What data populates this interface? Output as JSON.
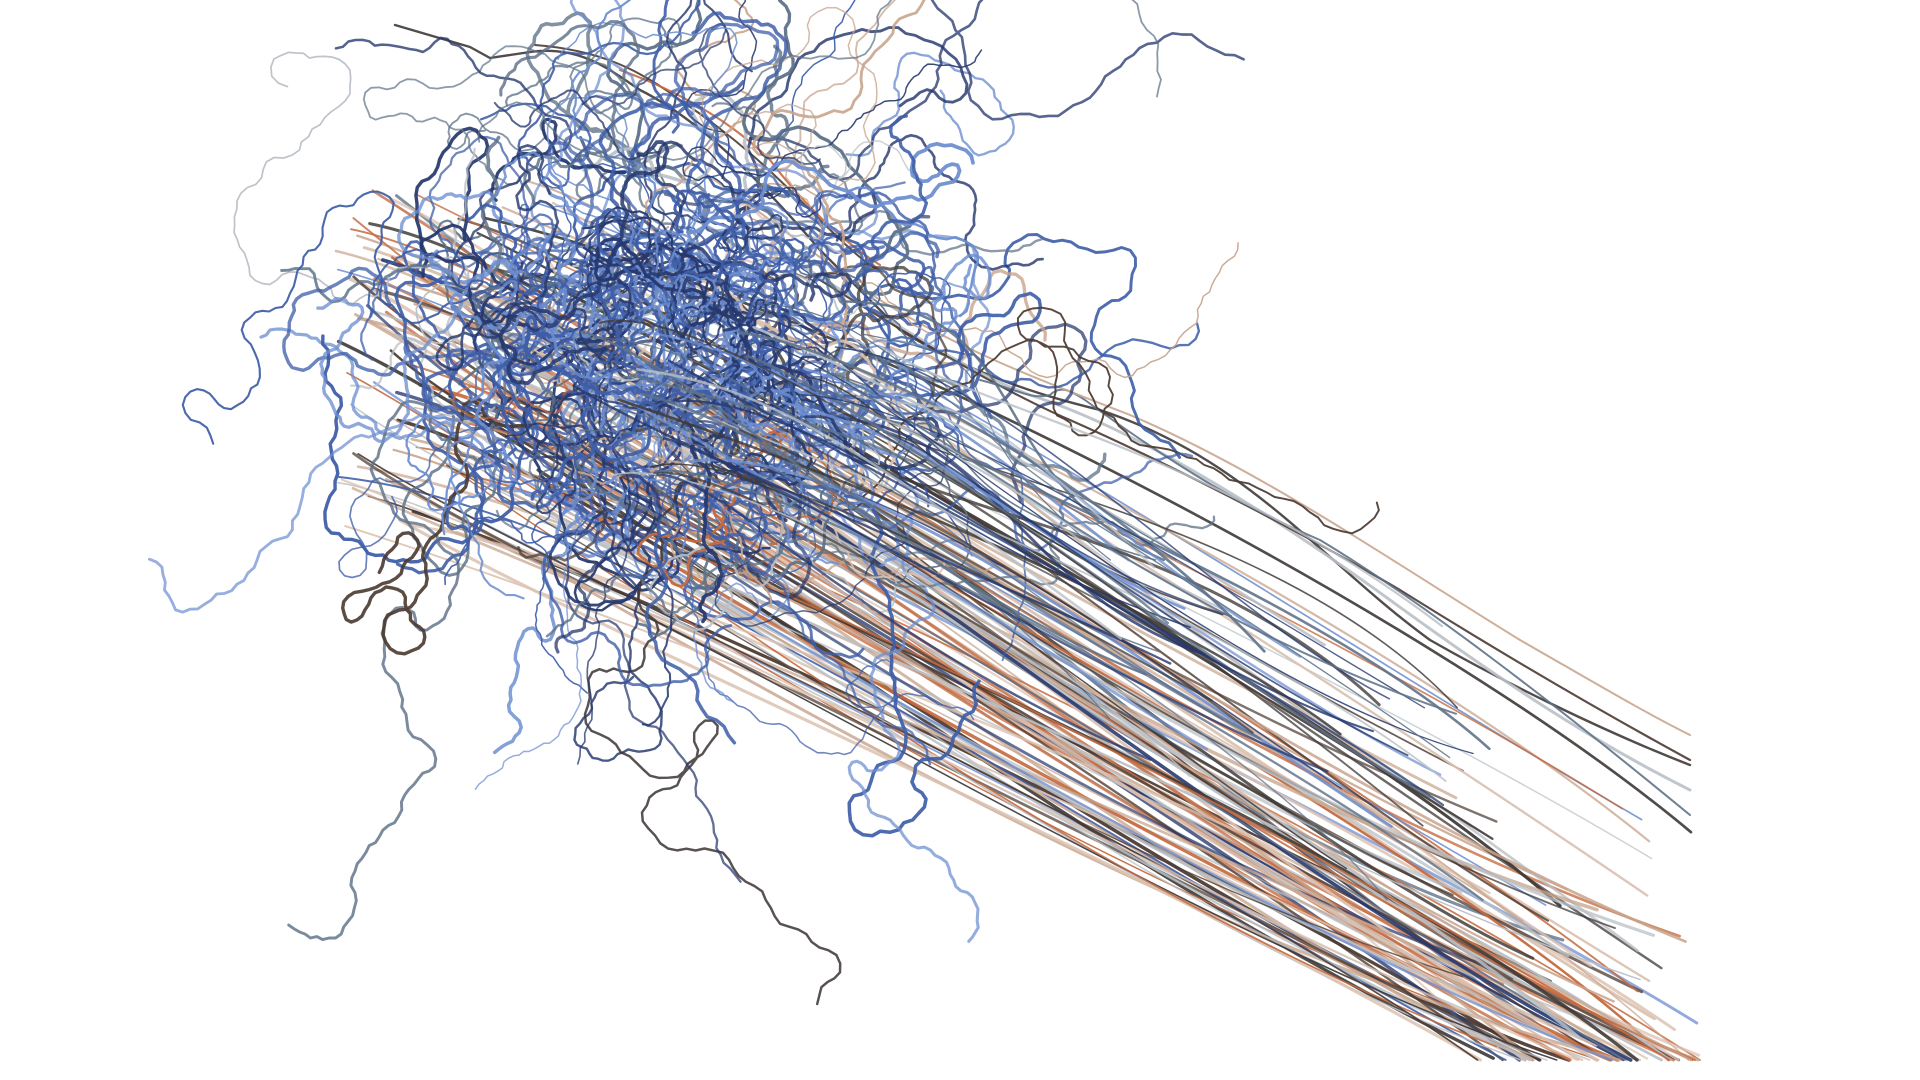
{
  "scene": {
    "background_color": "#ffffff",
    "palette": {
      "blue_dark": "#26386e",
      "blue_mid": "#3f5ea8",
      "blue_light": "#6d8ed0",
      "slate": "#5e7288",
      "gray_light": "#b9c0c6",
      "gray_dark": "#3f3a38",
      "brown_dark": "#4b3a32",
      "tan": "#c8a58e",
      "tan_light": "#dcc2b1",
      "orange": "#c56a3f"
    }
  }
}
